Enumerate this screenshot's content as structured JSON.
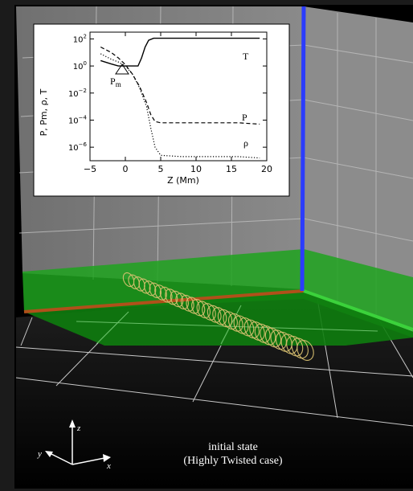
{
  "caption": {
    "line1": "initial state",
    "line2": "(Highly Twisted case)"
  },
  "axes3d": {
    "z_label": "z",
    "y_label": "y",
    "x_label": "x"
  },
  "colors": {
    "background": "#000000",
    "wall": "#7a7a7a",
    "green_layer": "#1fa31f",
    "blue_axis": "#2b3cff",
    "orange_edge": "#b0501a",
    "tube": "#d8c070"
  },
  "chart_data": {
    "type": "line",
    "xlabel": "Z (Mm)",
    "ylabel": "P, Pm, ρ, T",
    "xlim": [
      -5,
      20
    ],
    "ylim_log10": [
      -7,
      2.5
    ],
    "y_scale": "log",
    "x_ticks": [
      "−5",
      "0",
      "5",
      "10",
      "15",
      "20"
    ],
    "y_ticks": [
      {
        "base": "10",
        "exp": "2",
        "log": 2
      },
      {
        "base": "10",
        "exp": "0",
        "log": 0
      },
      {
        "base": "10",
        "exp": "−2",
        "log": -2
      },
      {
        "base": "10",
        "exp": "−4",
        "log": -4
      },
      {
        "base": "10",
        "exp": "−6",
        "log": -6
      }
    ],
    "series": [
      {
        "name": "T",
        "style": "solid",
        "x": [
          -3.5,
          -2,
          -1,
          0,
          1,
          1.8,
          2.3,
          2.8,
          3.3,
          4,
          5,
          10,
          15,
          19
        ],
        "log10": [
          0.4,
          0.15,
          0.0,
          0.0,
          0.0,
          0.0,
          0.6,
          1.4,
          1.9,
          2.05,
          2.05,
          2.05,
          2.05,
          2.05
        ]
      },
      {
        "name": "P",
        "style": "dashed",
        "x": [
          -3.5,
          -2,
          -1,
          0,
          1,
          2,
          3,
          3.6,
          4.2,
          5,
          8,
          12,
          16,
          19
        ],
        "log10": [
          1.4,
          1.0,
          0.6,
          0.1,
          -0.6,
          -1.5,
          -2.7,
          -3.6,
          -4.1,
          -4.2,
          -4.2,
          -4.2,
          -4.2,
          -4.3
        ]
      },
      {
        "name": "ρ",
        "style": "dotted",
        "x": [
          -3.5,
          -2,
          -1,
          0,
          1,
          2,
          3,
          3.6,
          4.2,
          5,
          8,
          12,
          16,
          19
        ],
        "log10": [
          0.9,
          0.5,
          0.3,
          0.0,
          -0.6,
          -1.6,
          -3.0,
          -4.6,
          -6.0,
          -6.6,
          -6.7,
          -6.7,
          -6.7,
          -6.8
        ]
      }
    ],
    "labels": {
      "T": "T",
      "P": "P",
      "rho": "ρ",
      "Pm": "P",
      "Pm_sub": "m"
    }
  }
}
